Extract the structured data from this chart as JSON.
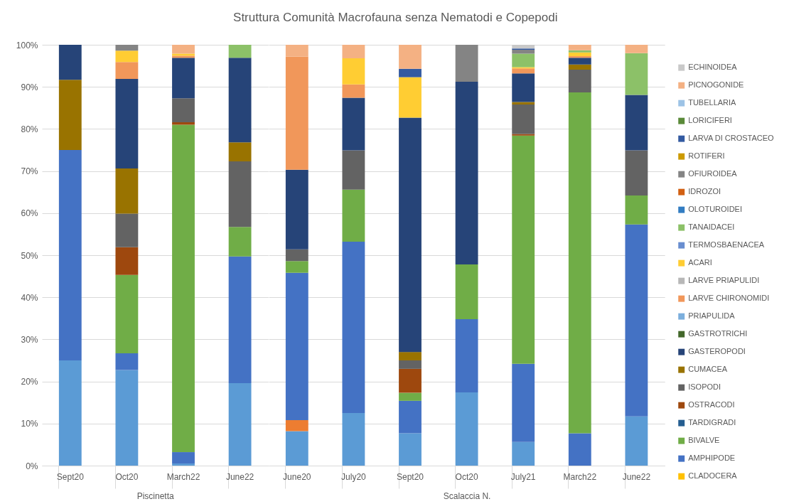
{
  "chart_data": [
    {
      "type": "bar",
      "stacked": true,
      "xlabel": "Piscinetta",
      "categories": [
        "Sept20",
        "Oct20",
        "March22",
        "June22"
      ],
      "ylim": [
        0,
        100
      ],
      "yticks": [
        {
          "value": 0,
          "label": "0%"
        },
        {
          "value": 10,
          "label": "10%"
        },
        {
          "value": 20,
          "label": "20%"
        },
        {
          "value": 30,
          "label": "30%"
        },
        {
          "value": 40,
          "label": "40%"
        },
        {
          "value": 50,
          "label": "50%"
        },
        {
          "value": 60,
          "label": "60%"
        },
        {
          "value": 70,
          "label": "70%"
        },
        {
          "value": 80,
          "label": "80%"
        },
        {
          "value": 90,
          "label": "90%"
        },
        {
          "value": 100,
          "label": "100%"
        }
      ],
      "grid": "y",
      "series": [
        {
          "color": "#5b9bd5",
          "values": [
            25.0,
            22.7,
            0.5,
            19.6
          ]
        },
        {
          "color": "#4472c4",
          "values": [
            50.0,
            4.0,
            2.7,
            30.1
          ]
        },
        {
          "color": "#70ad47",
          "values": [
            null,
            18.6,
            77.8,
            7.0
          ]
        },
        {
          "color": "#9e480e",
          "values": [
            null,
            6.6,
            0.6,
            null
          ]
        },
        {
          "color": "#636363",
          "values": [
            null,
            8.0,
            5.7,
            15.6
          ]
        },
        {
          "color": "#997300",
          "values": [
            16.7,
            10.7,
            null,
            4.5
          ]
        },
        {
          "color": "#264478",
          "values": [
            8.3,
            21.3,
            9.6,
            20.1
          ]
        },
        {
          "color": "#f1975a",
          "values": [
            null,
            4.0,
            0.5,
            null
          ]
        },
        {
          "color": "#ffcd33",
          "values": [
            null,
            2.7,
            0.5,
            null
          ]
        },
        {
          "color": "#8cc168",
          "values": [
            null,
            null,
            null,
            3.1
          ]
        },
        {
          "color": "#848484",
          "values": [
            null,
            1.4,
            null,
            null
          ]
        },
        {
          "color": "#f4b183",
          "values": [
            null,
            null,
            2.1,
            null
          ]
        }
      ]
    },
    {
      "type": "bar",
      "stacked": true,
      "title": "Struttura Comunità Macrofauna senza Nematodi e Copepodi",
      "xlabel": "Scalaccia N.",
      "categories": [
        "June20",
        "July20",
        "Sept20",
        "Oct20",
        "July21",
        "March22",
        "June22"
      ],
      "ylim": [
        0,
        100
      ],
      "yticks": [
        0,
        10,
        20,
        30,
        40,
        50,
        60,
        70,
        80,
        90,
        100
      ],
      "tick_labels": "x",
      "grid": "y",
      "legend": "right",
      "series": [
        {
          "color": "#5b9bd5",
          "values": [
            8.2,
            12.5,
            7.7,
            17.4,
            5.6,
            null,
            11.7
          ]
        },
        {
          "color": "#ed7d31",
          "values": [
            2.6,
            null,
            null,
            null,
            null,
            null,
            null
          ]
        },
        {
          "name": "CLADOCERA",
          "color": "#ffc000",
          "values": [
            null,
            null,
            null,
            null,
            null,
            null,
            null
          ]
        },
        {
          "name": "AMPHIPODE",
          "color": "#4472c4",
          "values": [
            35.0,
            40.7,
            7.7,
            17.4,
            18.6,
            7.7,
            45.6
          ]
        },
        {
          "name": "BIVALVE",
          "color": "#70ad47",
          "values": [
            2.8,
            12.4,
            1.9,
            13.0,
            54.2,
            81.0,
            6.9
          ]
        },
        {
          "name": "TARDIGRADI",
          "color": "#255e91",
          "values": [
            null,
            null,
            null,
            null,
            null,
            null,
            null
          ]
        },
        {
          "name": "OSTRACODI",
          "color": "#9e480e",
          "values": [
            null,
            null,
            5.7,
            null,
            0.4,
            null,
            null
          ]
        },
        {
          "name": "ISOPODI",
          "color": "#636363",
          "values": [
            2.8,
            9.3,
            2.0,
            null,
            7.0,
            5.4,
            10.7
          ]
        },
        {
          "name": "CUMACEA",
          "color": "#997300",
          "values": [
            null,
            null,
            2.0,
            null,
            0.6,
            1.2,
            null
          ]
        },
        {
          "name": "GASTEROPODI",
          "color": "#264478",
          "values": [
            18.9,
            12.5,
            55.7,
            43.4,
            6.8,
            1.6,
            13.2
          ]
        },
        {
          "name": "GASTROTRICHI",
          "color": "#43682b",
          "values": [
            null,
            null,
            null,
            null,
            null,
            null,
            null
          ]
        },
        {
          "name": "PRIAPULIDA",
          "color": "#7cafdd",
          "values": [
            null,
            null,
            null,
            null,
            null,
            null,
            null
          ]
        },
        {
          "name": "LARVE CHIRONOMIDI",
          "color": "#f1975a",
          "values": [
            26.9,
            3.2,
            null,
            null,
            1.2,
            0.4,
            null
          ]
        },
        {
          "name": "LARVE PRIAPULIDI",
          "color": "#b7b7b7",
          "values": [
            null,
            null,
            null,
            null,
            null,
            null,
            null
          ]
        },
        {
          "name": "ACARI",
          "color": "#ffcd33",
          "values": [
            null,
            6.2,
            9.6,
            null,
            0.3,
            0.9,
            null
          ]
        },
        {
          "name": "TERMOSBAENACEA",
          "color": "#698ed0",
          "values": [
            null,
            null,
            null,
            null,
            null,
            null,
            null
          ]
        },
        {
          "name": "TANAIDACEI",
          "color": "#8cc168",
          "values": [
            null,
            null,
            null,
            null,
            3.2,
            0.5,
            9.9
          ]
        },
        {
          "name": "OLOTUROIDEI",
          "color": "#327dc2",
          "values": [
            null,
            null,
            null,
            null,
            null,
            null,
            null
          ]
        },
        {
          "name": "IDROZOI",
          "color": "#d26012",
          "values": [
            null,
            null,
            null,
            null,
            null,
            null,
            null
          ]
        },
        {
          "name": "OFIUROIDEA",
          "color": "#848484",
          "values": [
            null,
            null,
            null,
            8.8,
            0.9,
            null,
            null
          ]
        },
        {
          "name": "ROTIFERI",
          "color": "#cc9a00",
          "values": [
            null,
            null,
            null,
            null,
            null,
            null,
            null
          ]
        },
        {
          "name": "LARVA DI CROSTACEO",
          "color": "#335aa1",
          "values": [
            null,
            null,
            2.0,
            null,
            0.3,
            null,
            null
          ]
        },
        {
          "name": "LORICIFERI",
          "color": "#5a8a39",
          "values": [
            null,
            null,
            null,
            null,
            null,
            null,
            null
          ]
        },
        {
          "name": "TUBELLARIA",
          "color": "#9dc3e6",
          "values": [
            null,
            null,
            null,
            null,
            null,
            null,
            null
          ]
        },
        {
          "name": "PICNOGONIDE",
          "color": "#f4b183",
          "values": [
            2.8,
            3.2,
            5.7,
            null,
            null,
            1.3,
            2.0
          ]
        },
        {
          "name": "ECHINOIDEA",
          "color": "#c9c9c9",
          "values": [
            null,
            null,
            null,
            null,
            0.9,
            null,
            null
          ]
        }
      ]
    }
  ]
}
